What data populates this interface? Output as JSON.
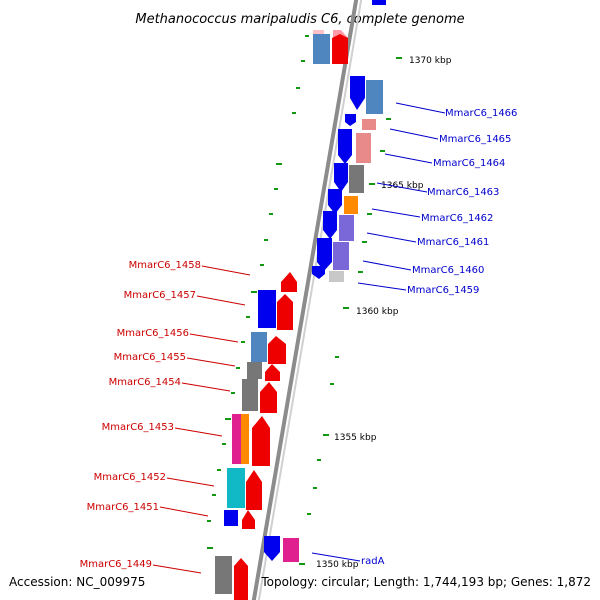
{
  "title": "Methanococcus maripaludis C6, complete genome",
  "accession": "Accession: NC_009975",
  "topology": "Topology: circular; Length: 1,744,193 bp; Genes: 1,872",
  "scale_labels": [
    "1370 kbp",
    "1365 kbp",
    "1360 kbp",
    "1355 kbp",
    "1350 kbp"
  ],
  "genes_forward": [
    {
      "label": "MmarC6_1466",
      "color": "#0000ee"
    },
    {
      "label": "MmarC6_1465",
      "color": "#0000ee"
    },
    {
      "label": "MmarC6_1464",
      "color": "#0000ee"
    },
    {
      "label": "MmarC6_1463",
      "color": "#0000ee"
    },
    {
      "label": "MmarC6_1462",
      "color": "#0000ee"
    },
    {
      "label": "MmarC6_1461",
      "color": "#0000ee"
    },
    {
      "label": "MmarC6_1460",
      "color": "#0000ee"
    },
    {
      "label": "MmarC6_1459",
      "color": "#0000ee"
    },
    {
      "label": "radA",
      "color": "#0000ee"
    }
  ],
  "genes_reverse": [
    {
      "label": "MmarC6_1458",
      "color": "#ee0000"
    },
    {
      "label": "MmarC6_1457",
      "color": "#ee0000"
    },
    {
      "label": "MmarC6_1456",
      "color": "#ee0000"
    },
    {
      "label": "MmarC6_1455",
      "color": "#ee0000"
    },
    {
      "label": "MmarC6_1454",
      "color": "#ee0000"
    },
    {
      "label": "MmarC6_1453",
      "color": "#ee0000"
    },
    {
      "label": "MmarC6_1452",
      "color": "#ee0000"
    },
    {
      "label": "MmarC6_1451",
      "color": "#ee0000"
    },
    {
      "label": "MmarC6_1449",
      "color": "#ee0000"
    }
  ],
  "colors": {
    "forward_label": "#0000cc",
    "reverse_label": "#cc0000",
    "backbone": "#8c8c8c",
    "tick": "#119911",
    "cog_steelblue": "#4f86c0",
    "cog_pink": "#e98a8a",
    "cog_gray": "#777777",
    "cog_orange": "#ff8a00",
    "cog_lavender": "#7b68d8",
    "cog_magenta": "#e0208e",
    "cog_cyan": "#11b8c6"
  }
}
